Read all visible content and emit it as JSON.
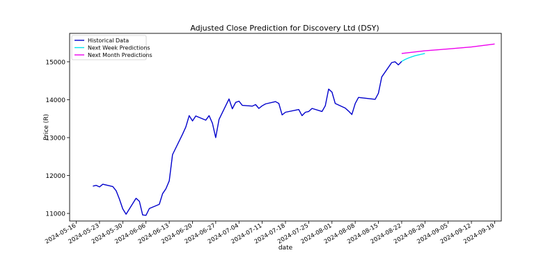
{
  "chart_data": {
    "type": "line",
    "title": "Adjusted Close Prediction for Discovery Ltd (DSY)",
    "xlabel": "date",
    "ylabel": "Price (R)",
    "xlim": [
      "2024-05-14",
      "2024-09-21"
    ],
    "ylim": [
      10800,
      15750
    ],
    "x_ticks": [
      "2024-05-16",
      "2024-05-23",
      "2024-05-30",
      "2024-06-06",
      "2024-06-13",
      "2024-06-20",
      "2024-06-27",
      "2024-07-04",
      "2024-07-11",
      "2024-07-18",
      "2024-07-25",
      "2024-08-01",
      "2024-08-08",
      "2024-08-15",
      "2024-08-22",
      "2024-08-29",
      "2024-09-05",
      "2024-09-12",
      "2024-09-19"
    ],
    "y_ticks": [
      11000,
      12000,
      13000,
      14000,
      15000
    ],
    "grid": false,
    "legend_position": "top-left",
    "series": [
      {
        "name": "Historical Data",
        "color": "#0000cc",
        "points": [
          [
            "2024-05-21",
            11720
          ],
          [
            "2024-05-22",
            11740
          ],
          [
            "2024-05-23",
            11700
          ],
          [
            "2024-05-24",
            11770
          ],
          [
            "2024-05-27",
            11710
          ],
          [
            "2024-05-28",
            11600
          ],
          [
            "2024-05-29",
            11380
          ],
          [
            "2024-05-30",
            11120
          ],
          [
            "2024-05-31",
            10980
          ],
          [
            "2024-06-03",
            11400
          ],
          [
            "2024-06-04",
            11320
          ],
          [
            "2024-06-05",
            10960
          ],
          [
            "2024-06-06",
            10950
          ],
          [
            "2024-06-07",
            11130
          ],
          [
            "2024-06-10",
            11240
          ],
          [
            "2024-06-11",
            11520
          ],
          [
            "2024-06-12",
            11650
          ],
          [
            "2024-06-13",
            11860
          ],
          [
            "2024-06-14",
            12550
          ],
          [
            "2024-06-17",
            13090
          ],
          [
            "2024-06-18",
            13280
          ],
          [
            "2024-06-19",
            13580
          ],
          [
            "2024-06-20",
            13440
          ],
          [
            "2024-06-21",
            13570
          ],
          [
            "2024-06-24",
            13460
          ],
          [
            "2024-06-25",
            13580
          ],
          [
            "2024-06-26",
            13380
          ],
          [
            "2024-06-27",
            13000
          ],
          [
            "2024-06-28",
            13480
          ],
          [
            "2024-07-01",
            14020
          ],
          [
            "2024-07-02",
            13760
          ],
          [
            "2024-07-03",
            13930
          ],
          [
            "2024-07-04",
            13960
          ],
          [
            "2024-07-05",
            13850
          ],
          [
            "2024-07-08",
            13830
          ],
          [
            "2024-07-09",
            13870
          ],
          [
            "2024-07-10",
            13770
          ],
          [
            "2024-07-11",
            13840
          ],
          [
            "2024-07-12",
            13890
          ],
          [
            "2024-07-15",
            13950
          ],
          [
            "2024-07-16",
            13900
          ],
          [
            "2024-07-17",
            13600
          ],
          [
            "2024-07-18",
            13670
          ],
          [
            "2024-07-22",
            13740
          ],
          [
            "2024-07-23",
            13580
          ],
          [
            "2024-07-24",
            13670
          ],
          [
            "2024-07-25",
            13690
          ],
          [
            "2024-07-26",
            13770
          ],
          [
            "2024-07-29",
            13690
          ],
          [
            "2024-07-30",
            13840
          ],
          [
            "2024-07-31",
            14280
          ],
          [
            "2024-08-01",
            14200
          ],
          [
            "2024-08-02",
            13900
          ],
          [
            "2024-08-05",
            13780
          ],
          [
            "2024-08-06",
            13700
          ],
          [
            "2024-08-07",
            13610
          ],
          [
            "2024-08-08",
            13900
          ],
          [
            "2024-08-09",
            14060
          ],
          [
            "2024-08-14",
            14010
          ],
          [
            "2024-08-15",
            14170
          ],
          [
            "2024-08-16",
            14600
          ],
          [
            "2024-08-19",
            14980
          ],
          [
            "2024-08-20",
            15000
          ],
          [
            "2024-08-21",
            14920
          ],
          [
            "2024-08-22",
            15010
          ]
        ]
      },
      {
        "name": "Next Week Predictions",
        "color": "#00e5ee",
        "points": [
          [
            "2024-08-22",
            15010
          ],
          [
            "2024-08-23",
            15060
          ],
          [
            "2024-08-24",
            15100
          ],
          [
            "2024-08-25",
            15130
          ],
          [
            "2024-08-26",
            15160
          ],
          [
            "2024-08-27",
            15180
          ],
          [
            "2024-08-28",
            15200
          ],
          [
            "2024-08-29",
            15220
          ]
        ]
      },
      {
        "name": "Next Month Predictions",
        "color": "#ee00ee",
        "points": [
          [
            "2024-08-22",
            15220
          ],
          [
            "2024-08-29",
            15290
          ],
          [
            "2024-09-05",
            15340
          ],
          [
            "2024-09-12",
            15390
          ],
          [
            "2024-09-19",
            15470
          ]
        ]
      }
    ]
  }
}
